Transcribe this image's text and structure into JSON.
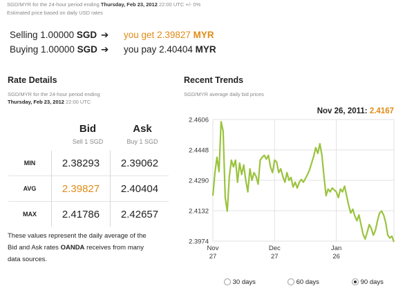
{
  "top": {
    "pair_prefix": "SGD/MYR for the 24-hour period ending",
    "date": "Thursday, Feb 23, 2012",
    "time": "22:00 UTC",
    "change": "+/- 0%",
    "note": "Estimated price based on daily USD rates"
  },
  "conversion": {
    "selling": {
      "label": "Selling",
      "amount": "1.00000",
      "from_ccy": "SGD",
      "arrow": "➔",
      "phrase": "you get",
      "result": "2.39827",
      "to_ccy": "MYR"
    },
    "buying": {
      "label": "Buying",
      "amount": "1.00000",
      "from_ccy": "SGD",
      "arrow": "➔",
      "phrase": "you pay",
      "result": "2.40404",
      "to_ccy": "MYR"
    }
  },
  "rate_details": {
    "title": "Rate Details",
    "sub1": "SGD/MYR for the 24-hour period ending",
    "date": "Thursday, Feb 23, 2012",
    "time": "22:00 UTC",
    "bid_header": "Bid",
    "bid_sub": "Sell 1 SGD",
    "ask_header": "Ask",
    "ask_sub": "Buy 1 SGD",
    "rows": [
      {
        "label": "MIN",
        "bid": "2.38293",
        "ask": "2.39062"
      },
      {
        "label": "AVG",
        "bid": "2.39827",
        "ask": "2.40404"
      },
      {
        "label": "MAX",
        "bid": "2.41786",
        "ask": "2.42657"
      }
    ],
    "footnote_1": "These values represent the daily average of the",
    "footnote_2_pre": "Bid and Ask rates",
    "footnote_2_brand": "OANDA",
    "footnote_2_post": "receives from many",
    "footnote_3": "data sources."
  },
  "trends": {
    "title": "Recent Trends",
    "subtitle": "SGD/MYR average daily bid prices",
    "hover_date": "Nov 26, 2011:",
    "hover_value": "2.4167",
    "ranges": [
      {
        "label": "30 days",
        "selected": false
      },
      {
        "label": "60 days",
        "selected": false
      },
      {
        "label": "90 days",
        "selected": true
      }
    ]
  },
  "colors": {
    "accent": "#e08b16",
    "line": "#9ac33e",
    "grid": "#e2e2e2"
  },
  "chart_data": {
    "type": "line",
    "ylim": [
      2.3974,
      2.4606
    ],
    "yticks": [
      "2.4606",
      "2.4448",
      "2.4290",
      "2.4132",
      "2.3974"
    ],
    "xticks": [
      {
        "day": 0,
        "top": "Nov",
        "bottom": "27"
      },
      {
        "day": 30,
        "top": "Dec",
        "bottom": "27"
      },
      {
        "day": 60,
        "top": "Jan",
        "bottom": "26"
      }
    ],
    "x_days": 88,
    "series": [
      {
        "values": [
          2.421,
          2.433,
          2.441,
          2.4335,
          2.4595,
          2.4545,
          2.42,
          2.413,
          2.431,
          2.4395,
          2.436,
          2.4395,
          2.428,
          2.438,
          2.432,
          2.437,
          2.429,
          2.423,
          2.435,
          2.429,
          2.433,
          2.431,
          2.427,
          2.4395,
          2.441,
          2.442,
          2.44,
          2.442,
          2.436,
          2.433,
          2.4395,
          2.4385,
          2.433,
          2.435,
          2.431,
          2.428,
          2.433,
          2.429,
          2.4305,
          2.4255,
          2.428,
          2.425,
          2.428,
          2.4295,
          2.428,
          2.43,
          2.432,
          2.4345,
          2.438,
          2.4415,
          2.446,
          2.443,
          2.448,
          2.442,
          2.431,
          2.421,
          2.4245,
          2.423,
          2.425,
          2.424,
          2.423,
          2.42,
          2.4245,
          2.423,
          2.426,
          2.421,
          2.416,
          2.412,
          2.414,
          2.4105,
          2.408,
          2.411,
          2.406,
          2.401,
          2.3985,
          2.402,
          2.406,
          2.404,
          2.4005,
          2.403,
          2.408,
          2.412,
          2.413,
          2.411,
          2.407,
          2.4005,
          2.399,
          2.4,
          2.397
        ]
      }
    ]
  }
}
